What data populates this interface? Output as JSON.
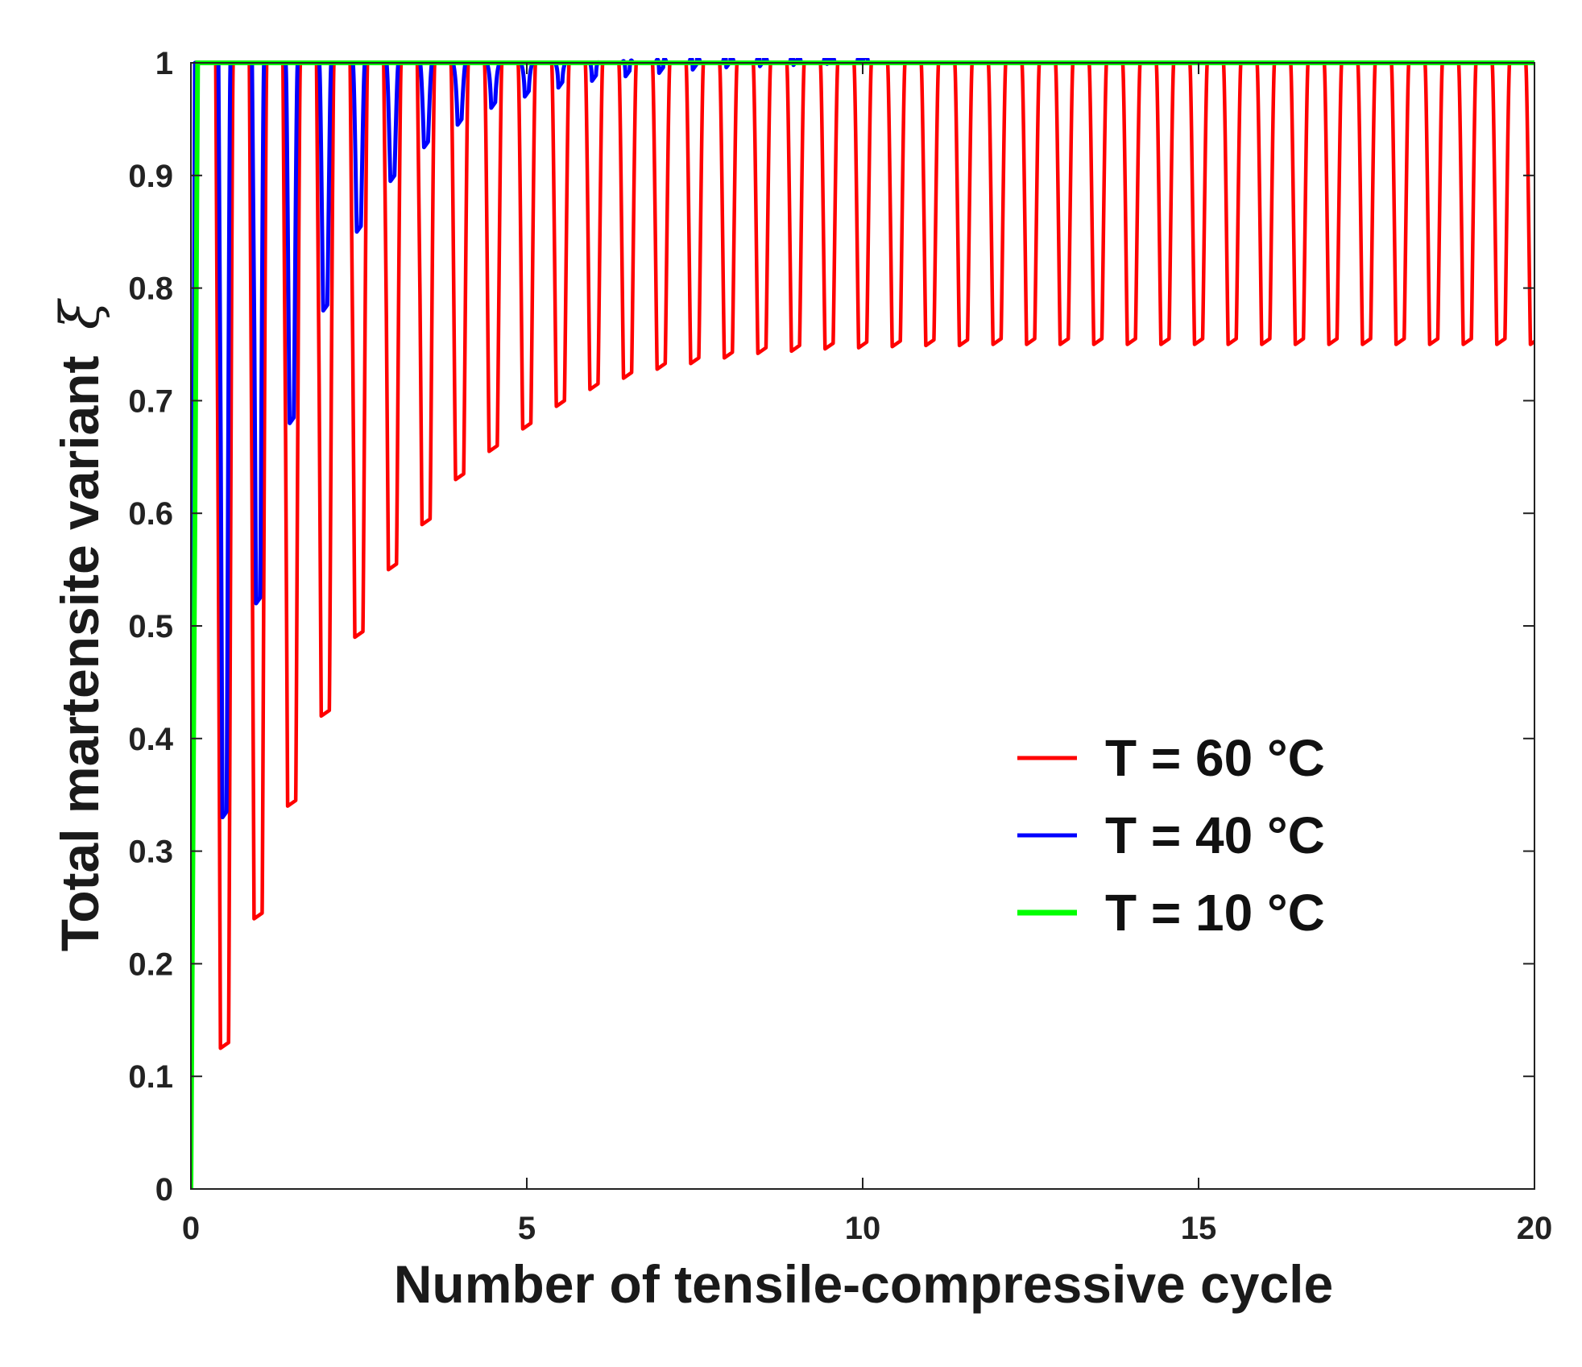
{
  "chart_data": {
    "type": "line",
    "title": "",
    "xlabel": "Number of tensile-compressive cycle",
    "ylabel_text": "Total martensite variant",
    "ylabel_symbol": "ξ",
    "xlim": [
      0,
      20
    ],
    "ylim": [
      0,
      1
    ],
    "xticks": [
      0,
      5,
      10,
      15,
      20
    ],
    "xtick_labels": [
      "0",
      "5",
      "10",
      "15",
      "20"
    ],
    "yticks": [
      0,
      0.1,
      0.2,
      0.3,
      0.4,
      0.5,
      0.6,
      0.7,
      0.8,
      0.9,
      1
    ],
    "ytick_labels": [
      "0",
      "0.1",
      "0.2",
      "0.3",
      "0.4",
      "0.5",
      "0.6",
      "0.7",
      "0.8",
      "0.9",
      "1"
    ],
    "grid": false,
    "legend_position": "center-right",
    "series": [
      {
        "name": "T = 60 °C",
        "color": "#ff0000",
        "description": "Oscillates between 1 and a minimum each half cycle; minima rise and saturate near 0.75",
        "max": 1.0,
        "minima_x": [
          0.5,
          1.0,
          1.5,
          2.0,
          2.5,
          3.0,
          3.5,
          4.0,
          4.5,
          5.0,
          5.5,
          6.0,
          6.5,
          7.0,
          7.5,
          8.0,
          8.5,
          9.0,
          9.5,
          10.0,
          10.5,
          11.0,
          11.5,
          12.0,
          12.5,
          13.0,
          13.5,
          14.0,
          14.5,
          15.0,
          15.5,
          16.0,
          16.5,
          17.0,
          17.5,
          18.0,
          18.5,
          19.0,
          19.5,
          20.0
        ],
        "minima_y": [
          0.125,
          0.24,
          0.34,
          0.42,
          0.49,
          0.55,
          0.59,
          0.63,
          0.655,
          0.675,
          0.695,
          0.71,
          0.72,
          0.728,
          0.733,
          0.738,
          0.742,
          0.744,
          0.746,
          0.747,
          0.748,
          0.749,
          0.749,
          0.75,
          0.75,
          0.75,
          0.75,
          0.75,
          0.75,
          0.75,
          0.75,
          0.75,
          0.75,
          0.75,
          0.75,
          0.75,
          0.75,
          0.75,
          0.75,
          0.75
        ]
      },
      {
        "name": "T = 40 °C",
        "color": "#0000ff",
        "description": "Oscillates between 1 and a minimum each half cycle; minima rise quickly to 1",
        "max": 1.0,
        "minima_x": [
          0.5,
          1.0,
          1.5,
          2.0,
          2.5,
          3.0,
          3.5,
          4.0,
          4.5,
          5.0,
          5.5,
          6.0,
          6.5,
          7.0,
          7.5,
          8.0,
          8.5,
          9.0,
          9.5,
          10.0
        ],
        "minima_y": [
          0.33,
          0.52,
          0.68,
          0.78,
          0.85,
          0.895,
          0.925,
          0.945,
          0.96,
          0.97,
          0.978,
          0.984,
          0.988,
          0.991,
          0.994,
          0.996,
          0.997,
          0.998,
          0.999,
          1.0
        ]
      },
      {
        "name": "T = 10 °C",
        "color": "#00ff00",
        "description": "Rises immediately to 1 and stays at 1",
        "x": [
          0,
          0.05,
          0.1,
          20
        ],
        "y": [
          0,
          0.5,
          1,
          1
        ]
      }
    ]
  }
}
